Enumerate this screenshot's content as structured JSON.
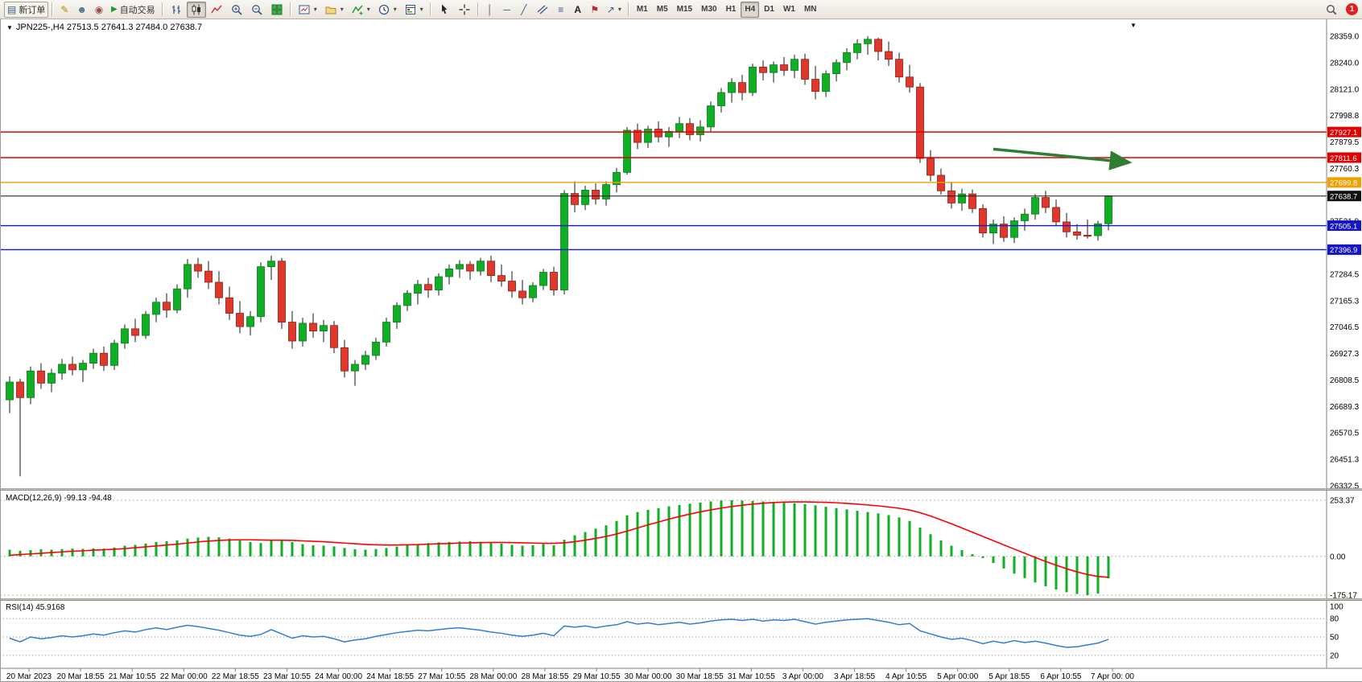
{
  "toolbar": {
    "new_order_label": "新订单",
    "autotrading_label": "自动交易",
    "timeframes": [
      "M1",
      "M5",
      "M15",
      "M30",
      "H1",
      "H4",
      "D1",
      "W1",
      "MN"
    ],
    "active_timeframe": "H4",
    "notification_count": "1"
  },
  "icons": {
    "new_order": "▤",
    "pencil": "✎",
    "user": "☻",
    "community": "◉",
    "play": "▶",
    "vline": "│",
    "hline": "─",
    "trendline": "╱",
    "fibonacci": "≡",
    "text": "A",
    "flag": "⚑",
    "arrows": "↗",
    "caret": "▾",
    "chart_dropdown": "▼",
    "shift_marker": "▼"
  },
  "svg_icon_names": [
    "bar-chart-icon",
    "candlestick-icon",
    "line-chart-icon",
    "zoom-in-icon",
    "zoom-out-icon",
    "tile-windows-icon",
    "new-chart-icon",
    "profiles-icon",
    "indicators-icon",
    "periods-clock-icon",
    "templates-icon",
    "cursor-icon",
    "crosshair-icon",
    "channel-icon",
    "search-icon"
  ],
  "chart": {
    "header": "JPN225-,H4  27513.5 27641.3 27484.0 27638.7"
  },
  "chart_data": {
    "type": "candlestick",
    "symbol": "JPN225-",
    "timeframe": "H4",
    "last_ohlc": {
      "open": 27513.5,
      "high": 27641.3,
      "low": 27484.0,
      "close": 27638.7
    },
    "price_axis_range": {
      "top": 28359.0,
      "bottom": 26332.5
    },
    "price_axis_labels": [
      "28359.0",
      "28240.0",
      "28121.0",
      "27998.8",
      "27879.5",
      "27760.3",
      "27641.1",
      "27521.9",
      "27402.7",
      "27284.5",
      "27165.3",
      "27046.5",
      "26927.3",
      "26808.5",
      "26689.3",
      "26570.5",
      "26451.3",
      "26332.5"
    ],
    "hlines": [
      {
        "price": 27927.1,
        "label": "27927.1",
        "color": "#e00000",
        "current": false
      },
      {
        "price": 27811.6,
        "label": "27811.6",
        "color": "#e00000",
        "current": false
      },
      {
        "price": 27699.8,
        "label": "27699.8",
        "color": "#f0a000",
        "current": false
      },
      {
        "price": 27638.7,
        "label": "27638.7",
        "color": "#111111",
        "current": true
      },
      {
        "price": 27505.1,
        "label": "27505.1",
        "color": "#1414c8",
        "current": false
      },
      {
        "price": 27396.9,
        "label": "27396.9",
        "color": "#1414c8",
        "current": false
      }
    ],
    "arrow": {
      "from_bar": 94,
      "from_price": 27850,
      "to_bar": 107,
      "to_price": 27790,
      "color": "#2e7d32"
    },
    "candles": [
      [
        26720,
        26825,
        26660,
        26800
      ],
      [
        26800,
        26815,
        26375,
        26730
      ],
      [
        26730,
        26870,
        26700,
        26850
      ],
      [
        26850,
        26885,
        26770,
        26795
      ],
      [
        26795,
        26860,
        26755,
        26840
      ],
      [
        26840,
        26905,
        26810,
        26880
      ],
      [
        26880,
        26915,
        26830,
        26855
      ],
      [
        26855,
        26900,
        26800,
        26885
      ],
      [
        26885,
        26950,
        26860,
        26930
      ],
      [
        26930,
        26960,
        26850,
        26875
      ],
      [
        26875,
        26990,
        26855,
        26975
      ],
      [
        26975,
        27060,
        26950,
        27040
      ],
      [
        27040,
        27085,
        26980,
        27010
      ],
      [
        27010,
        27120,
        26995,
        27105
      ],
      [
        27105,
        27180,
        27070,
        27160
      ],
      [
        27160,
        27200,
        27090,
        27125
      ],
      [
        27125,
        27240,
        27110,
        27220
      ],
      [
        27220,
        27355,
        27180,
        27330
      ],
      [
        27330,
        27360,
        27270,
        27300
      ],
      [
        27300,
        27345,
        27220,
        27250
      ],
      [
        27250,
        27300,
        27150,
        27180
      ],
      [
        27180,
        27230,
        27080,
        27110
      ],
      [
        27110,
        27165,
        27020,
        27050
      ],
      [
        27050,
        27120,
        27010,
        27095
      ],
      [
        27095,
        27340,
        27070,
        27320
      ],
      [
        27320,
        27370,
        27260,
        27345
      ],
      [
        27345,
        27360,
        27040,
        27070
      ],
      [
        27070,
        27120,
        26950,
        26985
      ],
      [
        26985,
        27090,
        26960,
        27065
      ],
      [
        27065,
        27110,
        27000,
        27030
      ],
      [
        27030,
        27080,
        26980,
        27055
      ],
      [
        27055,
        27075,
        26930,
        26955
      ],
      [
        26955,
        26990,
        26820,
        26850
      ],
      [
        26850,
        26900,
        26783,
        26880
      ],
      [
        26880,
        26940,
        26855,
        26920
      ],
      [
        26920,
        27000,
        26900,
        26980
      ],
      [
        26980,
        27090,
        26960,
        27070
      ],
      [
        27070,
        27160,
        27040,
        27145
      ],
      [
        27145,
        27215,
        27120,
        27200
      ],
      [
        27200,
        27260,
        27150,
        27240
      ],
      [
        27240,
        27270,
        27180,
        27215
      ],
      [
        27215,
        27290,
        27190,
        27275
      ],
      [
        27275,
        27330,
        27240,
        27310
      ],
      [
        27310,
        27350,
        27270,
        27330
      ],
      [
        27330,
        27345,
        27260,
        27300
      ],
      [
        27300,
        27360,
        27280,
        27345
      ],
      [
        27345,
        27370,
        27250,
        27280
      ],
      [
        27280,
        27330,
        27230,
        27255
      ],
      [
        27255,
        27300,
        27180,
        27210
      ],
      [
        27210,
        27260,
        27150,
        27180
      ],
      [
        27180,
        27250,
        27160,
        27235
      ],
      [
        27235,
        27310,
        27215,
        27295
      ],
      [
        27295,
        27320,
        27190,
        27215
      ],
      [
        27215,
        27665,
        27195,
        27650
      ],
      [
        27650,
        27705,
        27565,
        27600
      ],
      [
        27600,
        27685,
        27575,
        27665
      ],
      [
        27665,
        27695,
        27600,
        27625
      ],
      [
        27625,
        27705,
        27595,
        27690
      ],
      [
        27690,
        27765,
        27655,
        27745
      ],
      [
        27745,
        27950,
        27735,
        27935
      ],
      [
        27935,
        27965,
        27850,
        27880
      ],
      [
        27880,
        27955,
        27855,
        27940
      ],
      [
        27940,
        27975,
        27880,
        27905
      ],
      [
        27905,
        27950,
        27860,
        27930
      ],
      [
        27930,
        27995,
        27900,
        27965
      ],
      [
        27965,
        27990,
        27890,
        27915
      ],
      [
        27915,
        27980,
        27885,
        27950
      ],
      [
        27950,
        28065,
        27930,
        28045
      ],
      [
        28045,
        28125,
        28015,
        28105
      ],
      [
        28105,
        28170,
        28060,
        28150
      ],
      [
        28150,
        28185,
        28070,
        28105
      ],
      [
        28105,
        28235,
        28090,
        28220
      ],
      [
        28220,
        28250,
        28160,
        28195
      ],
      [
        28195,
        28245,
        28150,
        28230
      ],
      [
        28230,
        28265,
        28180,
        28205
      ],
      [
        28205,
        28275,
        28170,
        28255
      ],
      [
        28255,
        28280,
        28140,
        28165
      ],
      [
        28165,
        28225,
        28075,
        28110
      ],
      [
        28110,
        28205,
        28085,
        28190
      ],
      [
        28190,
        28255,
        28155,
        28240
      ],
      [
        28240,
        28305,
        28205,
        28285
      ],
      [
        28285,
        28345,
        28255,
        28325
      ],
      [
        28325,
        28359,
        28275,
        28345
      ],
      [
        28345,
        28352,
        28250,
        28290
      ],
      [
        28290,
        28335,
        28225,
        28255
      ],
      [
        28255,
        28285,
        28150,
        28175
      ],
      [
        28175,
        28230,
        28105,
        28130
      ],
      [
        28130,
        28148,
        27788,
        27808
      ],
      [
        27808,
        27845,
        27705,
        27732
      ],
      [
        27732,
        27762,
        27645,
        27662
      ],
      [
        27662,
        27702,
        27582,
        27607
      ],
      [
        27607,
        27672,
        27572,
        27648
      ],
      [
        27648,
        27668,
        27562,
        27582
      ],
      [
        27582,
        27602,
        27452,
        27472
      ],
      [
        27472,
        27532,
        27422,
        27512
      ],
      [
        27512,
        27547,
        27432,
        27452
      ],
      [
        27452,
        27542,
        27427,
        27527
      ],
      [
        27527,
        27582,
        27482,
        27557
      ],
      [
        27557,
        27647,
        27532,
        27632
      ],
      [
        27632,
        27662,
        27562,
        27587
      ],
      [
        27587,
        27622,
        27502,
        27522
      ],
      [
        27522,
        27562,
        27452,
        27477
      ],
      [
        27477,
        27512,
        27442,
        27462
      ],
      [
        27462,
        27532,
        27447,
        27460
      ],
      [
        27460,
        27527,
        27437,
        27513.5
      ],
      [
        27513.5,
        27641.3,
        27484.0,
        27638.7
      ]
    ],
    "macd": {
      "label": "MACD(12,26,9) -99.13 -94.48",
      "axis_labels": [
        "253.37",
        "0.00",
        "-175.17"
      ],
      "range": {
        "max": 253.37,
        "min": -175.17
      },
      "values": [
        30,
        25,
        28,
        32,
        30,
        33,
        35,
        34,
        36,
        35,
        40,
        48,
        52,
        58,
        65,
        68,
        72,
        80,
        85,
        88,
        86,
        80,
        72,
        65,
        60,
        70,
        72,
        65,
        55,
        50,
        48,
        45,
        38,
        32,
        30,
        33,
        38,
        44,
        50,
        55,
        60,
        63,
        65,
        67,
        68,
        66,
        62,
        58,
        52,
        48,
        50,
        55,
        50,
        75,
        95,
        110,
        125,
        140,
        160,
        185,
        200,
        210,
        218,
        226,
        232,
        238,
        243,
        248,
        252,
        253.37,
        252,
        250,
        248,
        246,
        243,
        240,
        236,
        230,
        224,
        218,
        212,
        206,
        200,
        194,
        186,
        176,
        160,
        130,
        100,
        72,
        48,
        28,
        10,
        -8,
        -30,
        -55,
        -78,
        -98,
        -118,
        -135,
        -150,
        -162,
        -170,
        -175.17,
        -168,
        -99.13
      ],
      "signal": [
        5,
        8,
        11,
        14,
        17,
        20,
        23,
        25,
        28,
        30,
        32,
        35,
        39,
        43,
        47,
        51,
        55,
        60,
        65,
        69,
        72,
        74,
        75,
        75,
        74,
        73,
        73,
        72,
        70,
        68,
        66,
        63,
        60,
        57,
        54,
        52,
        51,
        51,
        52,
        53,
        55,
        57,
        58,
        60,
        61,
        62,
        63,
        63,
        62,
        61,
        60,
        59,
        59,
        61,
        66,
        73,
        81,
        90,
        101,
        114,
        128,
        142,
        155,
        168,
        180,
        191,
        201,
        210,
        218,
        225,
        231,
        236,
        240,
        243,
        245,
        246,
        246,
        245,
        244,
        242,
        239,
        236,
        232,
        228,
        223,
        217,
        209,
        197,
        182,
        165,
        147,
        128,
        109,
        90,
        71,
        52,
        33,
        14,
        -5,
        -23,
        -40,
        -56,
        -70,
        -82,
        -91,
        -94.48
      ]
    },
    "rsi": {
      "label": "RSI(14) 45.9168",
      "axis_labels": [
        "100",
        "80",
        "50",
        "20"
      ],
      "levels": [
        80,
        50,
        20
      ],
      "range": {
        "max": 100,
        "min": 0
      },
      "values": [
        48,
        42,
        50,
        47,
        49,
        52,
        50,
        52,
        55,
        53,
        57,
        60,
        58,
        62,
        65,
        62,
        66,
        69,
        67,
        64,
        61,
        57,
        53,
        51,
        54,
        62,
        55,
        48,
        52,
        50,
        51,
        47,
        42,
        45,
        47,
        51,
        54,
        57,
        59,
        61,
        60,
        62,
        64,
        65,
        63,
        61,
        58,
        56,
        53,
        51,
        53,
        56,
        52,
        68,
        66,
        68,
        65,
        68,
        70,
        75,
        71,
        73,
        70,
        72,
        74,
        71,
        73,
        76,
        78,
        79,
        77,
        79,
        76,
        78,
        77,
        79,
        75,
        71,
        74,
        76,
        78,
        79,
        80,
        77,
        74,
        70,
        72,
        60,
        55,
        50,
        46,
        48,
        44,
        39,
        43,
        40,
        44,
        41,
        43,
        40,
        36,
        33,
        34,
        37,
        40,
        45.9168
      ]
    },
    "time_axis_labels": [
      "20 Mar 2023",
      "20 Mar 18:55",
      "21 Mar 10:55",
      "22 Mar 00:00",
      "22 Mar 18:55",
      "23 Mar 10:55",
      "24 Mar 00:00",
      "24 Mar 18:55",
      "27 Mar 10:55",
      "28 Mar 00:00",
      "28 Mar 18:55",
      "29 Mar 10:55",
      "30 Mar 00:00",
      "30 Mar 18:55",
      "31 Mar 10:55",
      "3 Apr 00:00",
      "3 Apr 18:55",
      "4 Apr 10:55",
      "5 Apr 00:00",
      "5 Apr 18:55",
      "6 Apr 10:55",
      "7 Apr 00: 00"
    ],
    "colors": {
      "up": "#0fae24",
      "up_border": "#0a7d19",
      "down": "#e0392b",
      "down_border": "#8f1d15",
      "wick": "#1a1a1a",
      "macd_hist": "#0fae24",
      "macd_signal": "#ff0000",
      "rsi": "#2f7ed8"
    }
  }
}
